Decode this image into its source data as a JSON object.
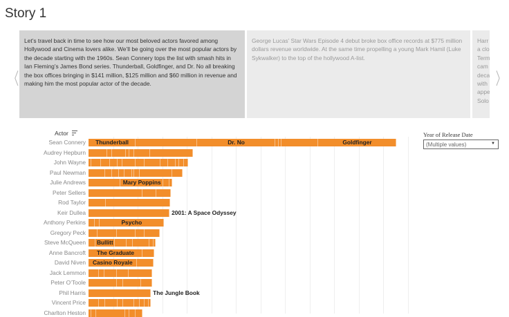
{
  "story": {
    "title": "Story 1"
  },
  "story_points": [
    {
      "text": "Let’s travel back in time to see how our most beloved actors favored among Hollywood and Cinema lovers alike. We’ll be going over the most popular actors by the decade starting with the 1960s. Sean Connery tops the list with smash hits in Ian Fleming’s James Bond series. Thunderball, Goldfinger, and Dr. No all breaking the box offices bringing in $141 million, $125 million and $60 million in revenue and making him the most popular actor of the decade.",
      "selected": true
    },
    {
      "text": "George Lucas’ Star Wars Episode 4 debut broke box office records at $775 million dollars revenue worldwide. At the same time propelling a young Mark Hamil (Luke Sykwalker) to the top of the hollywood A-list.",
      "selected": false
    },
    {
      "text": "Harr\na clo\nTerm\ncam\ndeca\nwith\nappe\nSolo",
      "selected": false
    }
  ],
  "nav": {
    "prev_icon": "chevron-left",
    "next_icon": "chevron-right",
    "prev": "〈",
    "next": "〉"
  },
  "filter": {
    "title": "Year of Release Date",
    "value": "(Multiple values)"
  },
  "chart_data": {
    "type": "bar",
    "orientation": "horizontal",
    "stacked": true,
    "axis_title": "Actor",
    "color": "#f28e2b",
    "grid": true,
    "rows": [
      {
        "actor": "Sean Connery",
        "segments": [
          1.92,
          2.51,
          3.18,
          0.14,
          0.11,
          1.49,
          3.18
        ],
        "labels": [
          {
            "seg": 0,
            "text": "Thunderball"
          },
          {
            "seg": 2,
            "text": "Dr. No"
          },
          {
            "seg": 6,
            "text": "Goldfinger"
          }
        ]
      },
      {
        "actor": "Audrey Hepburn",
        "segments": [
          0.76,
          0.2,
          0.56,
          0.14,
          0.2,
          0.65,
          1.75
        ],
        "labels": []
      },
      {
        "actor": "John Wayne",
        "segments": [
          0.11,
          0.39,
          0.37,
          0.31,
          0.2,
          0.54,
          0.37,
          0.65,
          0.31,
          0.31,
          0.14,
          0.2,
          0.17
        ],
        "labels": []
      },
      {
        "actor": "Paul Newman",
        "segments": [
          0.68,
          0.28,
          0.28,
          0.23,
          0.31,
          0.08,
          0.23,
          1.32,
          0.42
        ],
        "labels": []
      },
      {
        "actor": "Julie Andrews",
        "segments": [
          1.3,
          1.75,
          0.25,
          0.11
        ],
        "labels": [
          {
            "seg": 1,
            "text": "Mary Poppins"
          }
        ]
      },
      {
        "actor": "Peter Sellers",
        "segments": [
          2.2,
          0.56,
          0.59
        ],
        "labels": []
      },
      {
        "actor": "Rod Taylor",
        "segments": [
          0.7,
          2.62
        ],
        "labels": []
      },
      {
        "actor": "Keir Dullea",
        "segments": [
          3.3
        ],
        "labels": [
          {
            "seg": 0,
            "text": "2001: A Space Odyssey",
            "outside": true
          }
        ]
      },
      {
        "actor": "Anthony Perkins",
        "segments": [
          0.25,
          0.2,
          2.62
        ],
        "labels": [
          {
            "seg": 2,
            "text": "Psycho"
          }
        ]
      },
      {
        "actor": "Gregory Peck",
        "segments": [
          0.37,
          0.79,
          0.76,
          0.37,
          0.62
        ],
        "labels": []
      },
      {
        "actor": "Steve McQueen",
        "segments": [
          0.28,
          0.79,
          0.48,
          0.25,
          0.68,
          0.17,
          0.08
        ],
        "labels": [
          {
            "seg": 1,
            "text": "Bullitt"
          }
        ]
      },
      {
        "actor": "Anne Bancroft",
        "segments": [
          2.2,
          0.48
        ],
        "labels": [
          {
            "seg": 0,
            "text": "The Graduate"
          }
        ]
      },
      {
        "actor": "David Niven",
        "segments": [
          1.97,
          0.68
        ],
        "labels": [
          {
            "seg": 0,
            "text": "Casino Royale"
          }
        ]
      },
      {
        "actor": "Jack Lemmon",
        "segments": [
          0.42,
          0.23,
          0.51,
          0.48,
          0.96
        ],
        "labels": []
      },
      {
        "actor": "Peter O’Toole",
        "segments": [
          1.15,
          0.25,
          0.73,
          0.45
        ],
        "labels": []
      },
      {
        "actor": "Phil Harris",
        "segments": [
          2.54
        ],
        "labels": [
          {
            "seg": 0,
            "text": "The Jungle Book",
            "outside": true
          }
        ]
      },
      {
        "actor": "Vincent Price",
        "segments": [
          0.42,
          0.25,
          0.51,
          0.23,
          0.45,
          0.23,
          0.2,
          0.17,
          0.08
        ],
        "labels": []
      },
      {
        "actor": "Charlton Heston",
        "segments": [
          0.11,
          0.2,
          1.18,
          0.17,
          0.25,
          0.28
        ],
        "labels": []
      }
    ]
  }
}
